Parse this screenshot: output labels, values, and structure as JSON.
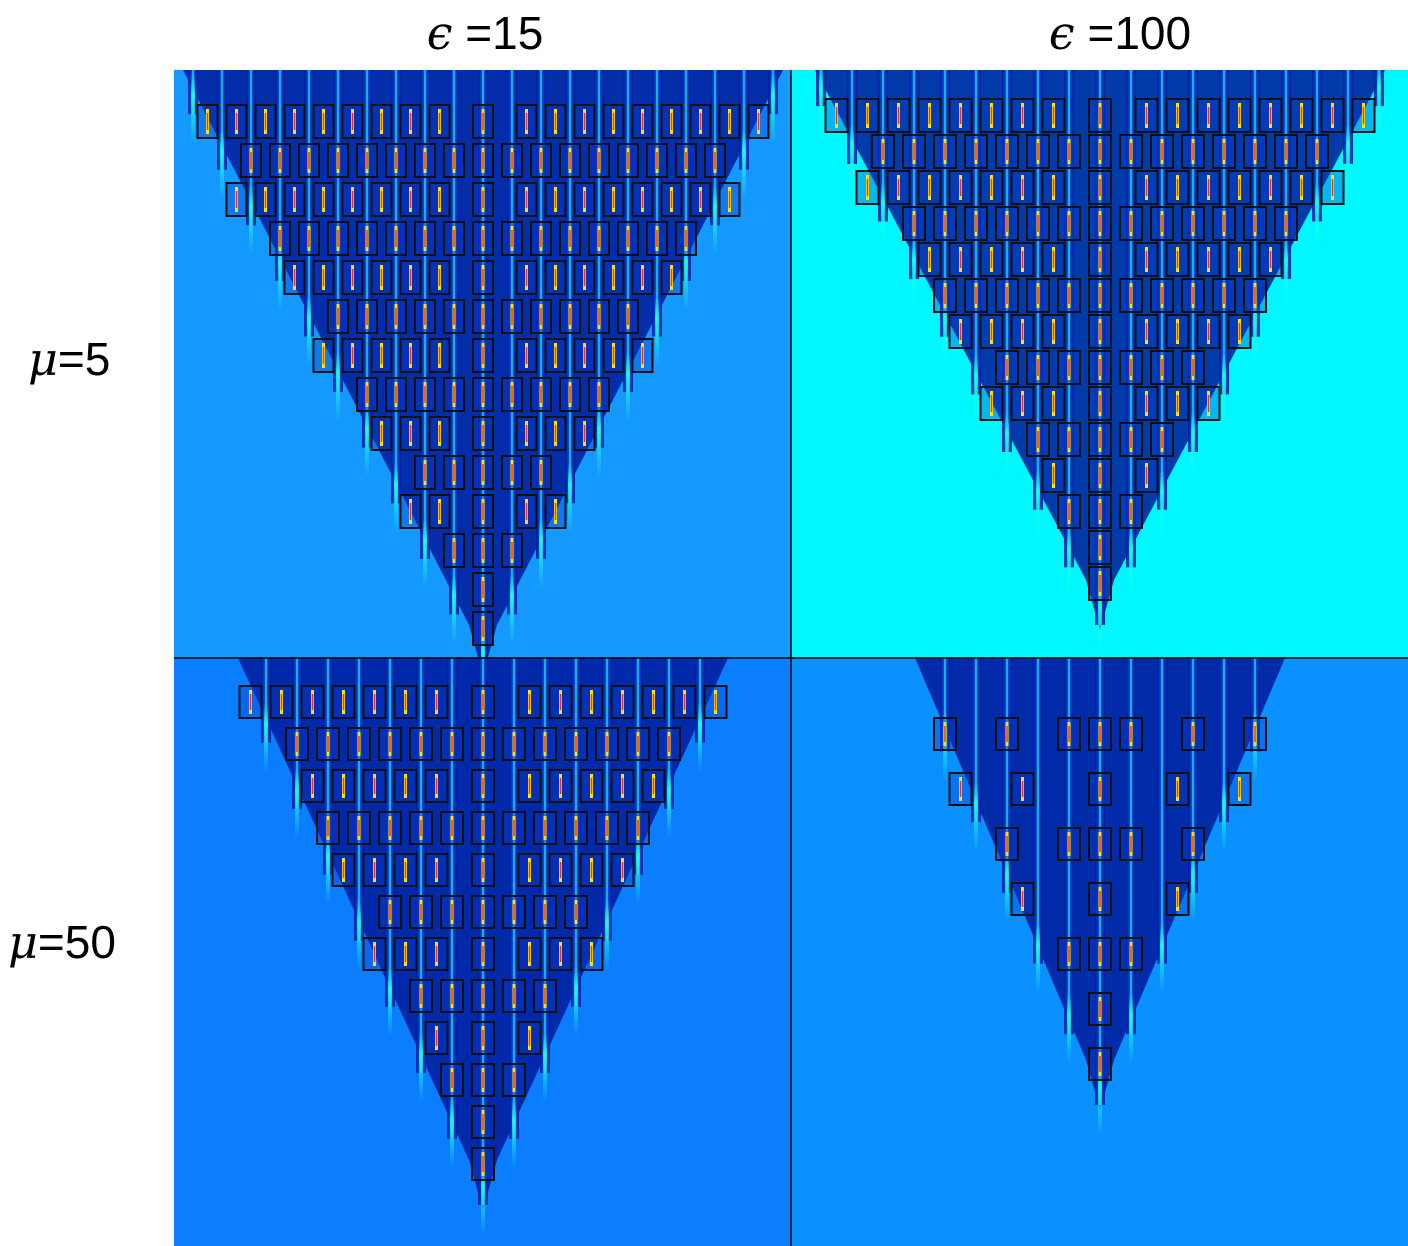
{
  "column_headers": [
    {
      "symbol": "ϵ",
      "eq": "=",
      "value": "15"
    },
    {
      "symbol": "ϵ",
      "eq": "=",
      "value": "100"
    }
  ],
  "row_headers": [
    {
      "symbol": "μ",
      "eq": "=",
      "value": "5"
    },
    {
      "symbol": "μ",
      "eq": "=",
      "value": "50"
    }
  ],
  "panels": [
    {
      "id": "p11",
      "background": "#1499ff",
      "row": 0,
      "col": 0
    },
    {
      "id": "p12",
      "background": "#00f7ff",
      "row": 0,
      "col": 1
    },
    {
      "id": "p21",
      "background": "#0b7dff",
      "row": 1,
      "col": 0
    },
    {
      "id": "p22",
      "background": "#0a90ff",
      "row": 1,
      "col": 1
    }
  ],
  "colors": {
    "dark_band": "#001a9a",
    "mid_band": "#0a3fd8",
    "bright_line": "#20ffe0",
    "peak": "#ffe000",
    "hot": "#ff2a00",
    "box_stroke": "#111111",
    "divider": "#000000"
  }
}
